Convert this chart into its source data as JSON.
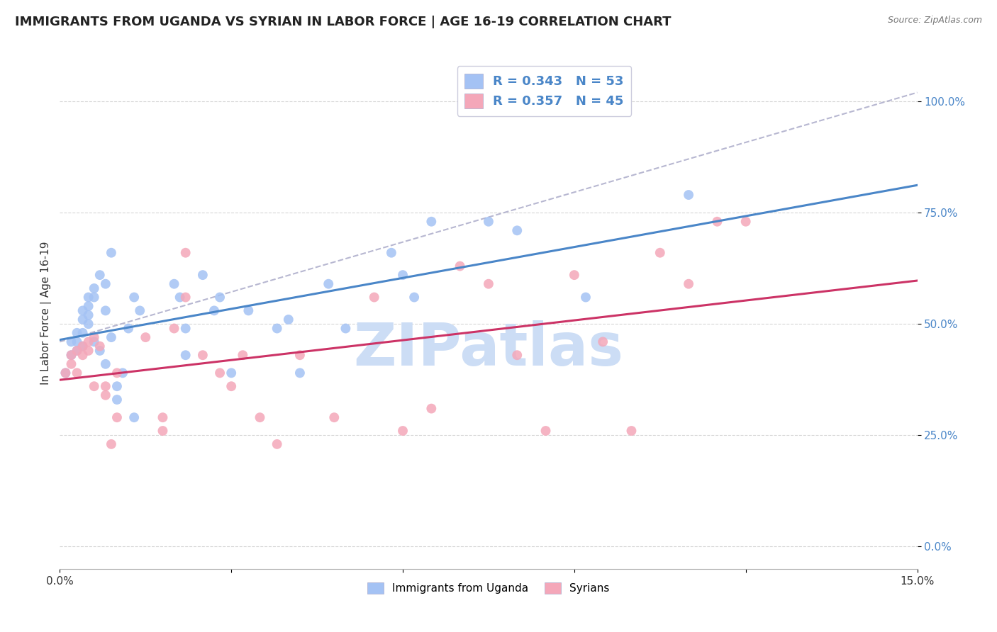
{
  "title": "IMMIGRANTS FROM UGANDA VS SYRIAN IN LABOR FORCE | AGE 16-19 CORRELATION CHART",
  "source": "Source: ZipAtlas.com",
  "ylabel": "In Labor Force | Age 16-19",
  "xlim": [
    0.0,
    0.15
  ],
  "ylim": [
    -0.05,
    1.1
  ],
  "ytick_vals": [
    0.0,
    0.25,
    0.5,
    0.75,
    1.0
  ],
  "ytick_labels": [
    "0.0%",
    "25.0%",
    "50.0%",
    "75.0%",
    "100.0%"
  ],
  "xtick_vals": [
    0.0,
    0.03,
    0.06,
    0.09,
    0.12,
    0.15
  ],
  "xtick_labels": [
    "0.0%",
    "",
    "",
    "",
    "",
    "15.0%"
  ],
  "uganda_R": "0.343",
  "uganda_N": "53",
  "syrian_R": "0.357",
  "syrian_N": "45",
  "uganda_color": "#a4c2f4",
  "syrian_color": "#f4a7b9",
  "uganda_line_color": "#4a86c8",
  "syrian_line_color": "#cc3366",
  "diagonal_color": "#b0b0cc",
  "watermark_text": "ZIPatlas",
  "watermark_color": "#ccddf5",
  "legend_uganda_label": "Immigrants from Uganda",
  "legend_syrian_label": "Syrians",
  "uganda_x": [
    0.001,
    0.002,
    0.002,
    0.003,
    0.003,
    0.003,
    0.004,
    0.004,
    0.004,
    0.004,
    0.005,
    0.005,
    0.005,
    0.005,
    0.006,
    0.006,
    0.006,
    0.007,
    0.007,
    0.008,
    0.008,
    0.008,
    0.009,
    0.009,
    0.01,
    0.01,
    0.011,
    0.012,
    0.013,
    0.013,
    0.014,
    0.02,
    0.021,
    0.022,
    0.022,
    0.025,
    0.027,
    0.028,
    0.03,
    0.033,
    0.038,
    0.04,
    0.042,
    0.047,
    0.05,
    0.058,
    0.06,
    0.062,
    0.065,
    0.075,
    0.08,
    0.092,
    0.11
  ],
  "uganda_y": [
    0.39,
    0.43,
    0.46,
    0.48,
    0.46,
    0.44,
    0.45,
    0.51,
    0.53,
    0.48,
    0.56,
    0.54,
    0.52,
    0.5,
    0.58,
    0.56,
    0.46,
    0.61,
    0.44,
    0.59,
    0.53,
    0.41,
    0.66,
    0.47,
    0.36,
    0.33,
    0.39,
    0.49,
    0.56,
    0.29,
    0.53,
    0.59,
    0.56,
    0.49,
    0.43,
    0.61,
    0.53,
    0.56,
    0.39,
    0.53,
    0.49,
    0.51,
    0.39,
    0.59,
    0.49,
    0.66,
    0.61,
    0.56,
    0.73,
    0.73,
    0.71,
    0.56,
    0.79
  ],
  "syrian_x": [
    0.001,
    0.002,
    0.002,
    0.003,
    0.003,
    0.004,
    0.004,
    0.005,
    0.005,
    0.006,
    0.006,
    0.007,
    0.008,
    0.008,
    0.009,
    0.01,
    0.01,
    0.015,
    0.018,
    0.018,
    0.02,
    0.022,
    0.022,
    0.025,
    0.028,
    0.03,
    0.032,
    0.035,
    0.038,
    0.042,
    0.048,
    0.055,
    0.06,
    0.065,
    0.07,
    0.075,
    0.08,
    0.085,
    0.09,
    0.095,
    0.1,
    0.105,
    0.11,
    0.115,
    0.12
  ],
  "syrian_y": [
    0.39,
    0.41,
    0.43,
    0.39,
    0.44,
    0.43,
    0.45,
    0.44,
    0.46,
    0.36,
    0.47,
    0.45,
    0.34,
    0.36,
    0.23,
    0.29,
    0.39,
    0.47,
    0.26,
    0.29,
    0.49,
    0.66,
    0.56,
    0.43,
    0.39,
    0.36,
    0.43,
    0.29,
    0.23,
    0.43,
    0.29,
    0.56,
    0.26,
    0.31,
    0.63,
    0.59,
    0.43,
    0.26,
    0.61,
    0.46,
    0.26,
    0.66,
    0.59,
    0.73,
    0.73
  ],
  "background_color": "#ffffff",
  "grid_color": "#cccccc",
  "title_fontsize": 13,
  "axis_label_fontsize": 11,
  "tick_fontsize": 11,
  "right_tick_color": "#4a86c8"
}
